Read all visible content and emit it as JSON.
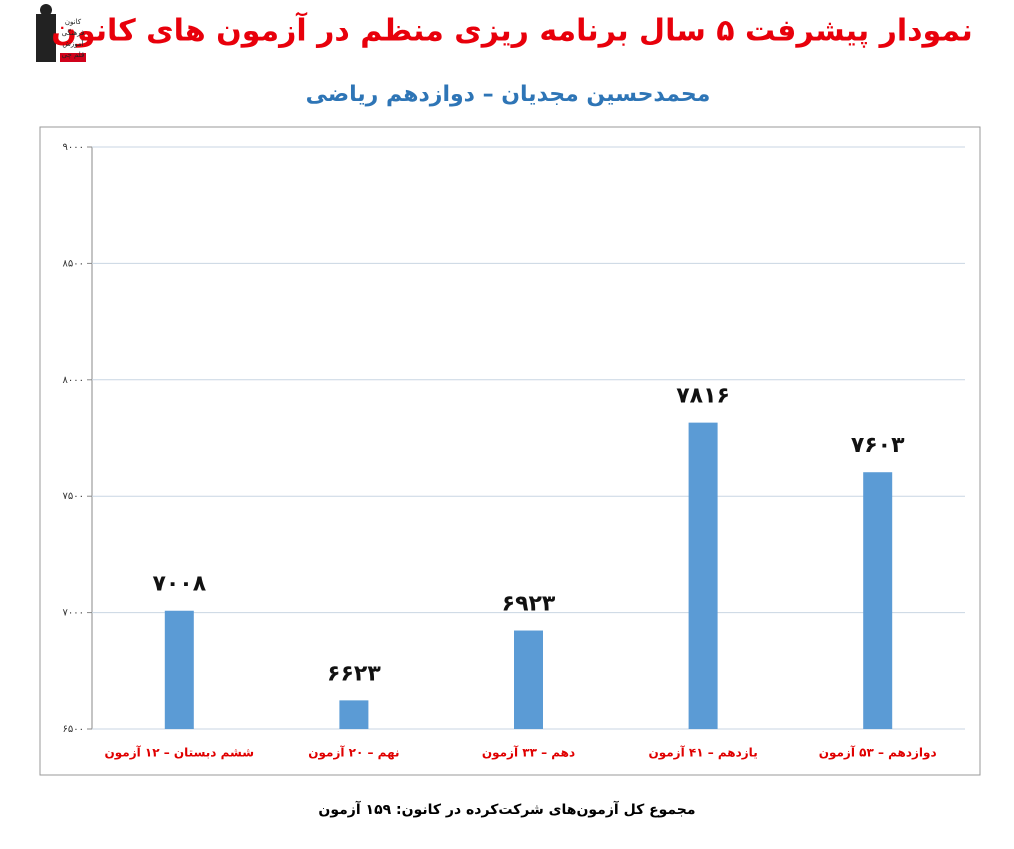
{
  "logo_text": [
    "کانون",
    "فرهنگی",
    "آموزش",
    "قلم چی"
  ],
  "chart_data": {
    "type": "bar",
    "title": "نمودار پیشرفت ۵ سال برنامه ریزی منظم در آزمون های کانون",
    "subtitle": "محمدحسین مجدیان – دوازدهم ریاضی",
    "footnote": "مجموع کل آزمون‌های شرکت‌کرده در کانون: ۱۵۹ آزمون",
    "categories": [
      "ششم دبستان – ۱۲ آزمون",
      "نهم – ۲۰ آزمون",
      "دهم – ۳۳ آزمون",
      "یازدهم – ۴۱ آزمون",
      "دوازدهم – ۵۳ آزمون"
    ],
    "values": [
      7008,
      6623,
      6923,
      7816,
      7603
    ],
    "value_labels": [
      "۷۰۰۸",
      "۶۶۲۳",
      "۶۹۲۳",
      "۷۸۱۶",
      "۷۶۰۳"
    ],
    "color": "#5b9bd5",
    "ylim": [
      6500,
      9000
    ],
    "yticks": [
      {
        "value": 6500,
        "label": "۶۵۰۰"
      },
      {
        "value": 7000,
        "label": "۷۰۰۰"
      },
      {
        "value": 7500,
        "label": "۷۵۰۰"
      },
      {
        "value": 8000,
        "label": "۸۰۰۰"
      },
      {
        "value": 8500,
        "label": "۸۵۰۰"
      },
      {
        "value": 9000,
        "label": "۹۰۰۰"
      }
    ],
    "grid": true
  }
}
